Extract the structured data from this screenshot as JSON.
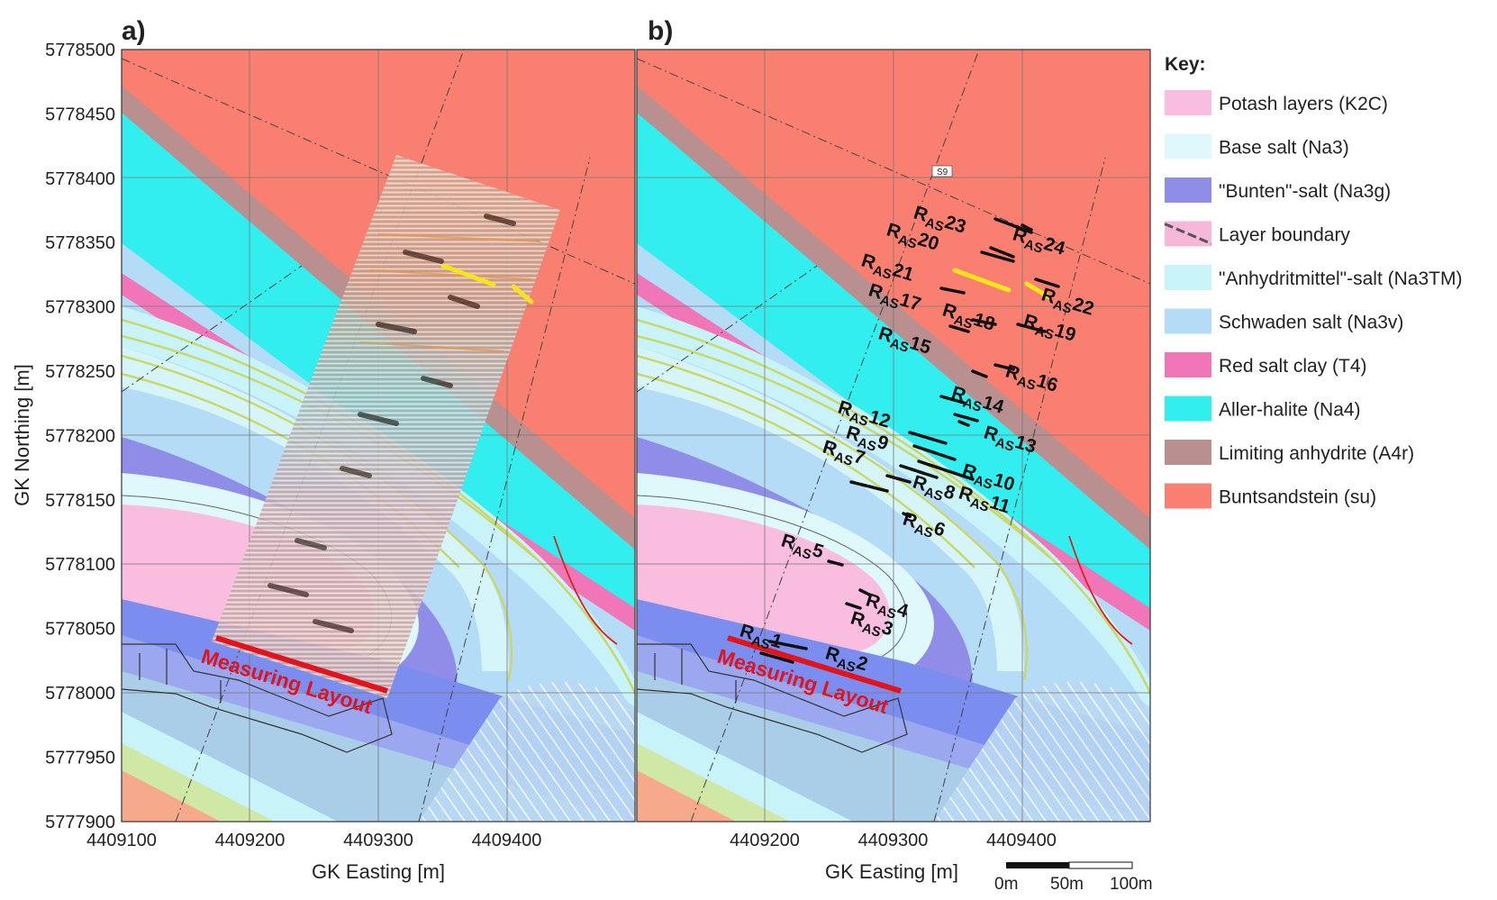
{
  "panels": [
    {
      "id": "a",
      "label": "a)"
    },
    {
      "id": "b",
      "label": "b)"
    }
  ],
  "axes": {
    "ylabel": "GK Northing [m]",
    "xlabel": "GK Easting [m]",
    "yticks": [
      "5778500",
      "5778450",
      "5778400",
      "5778350",
      "5778300",
      "5778250",
      "5778200",
      "5778150",
      "5778100",
      "5778050",
      "5778000",
      "5777950",
      "5777900"
    ],
    "xticks_a": [
      "4409100",
      "4409200",
      "4409300",
      "4409400"
    ],
    "xticks_b": [
      "4409200",
      "4409300",
      "4409400"
    ]
  },
  "key": {
    "title": "Key:",
    "items": [
      {
        "label": "Potash layers (K2C)",
        "color": "#f9bde0"
      },
      {
        "label": "Base salt (Na3)",
        "color": "#dff8fb"
      },
      {
        "label": "\"Bunten\"-salt (Na3g)",
        "color": "#8f8de8"
      },
      {
        "label": "Layer boundary",
        "color": "#f6b7d8"
      },
      {
        "label": "\"Anhydritmittel\"-salt (Na3TM)",
        "color": "#c8f3f8"
      },
      {
        "label": "Schwaden salt (Na3v)",
        "color": "#b5dcf6"
      },
      {
        "label": "Red salt clay (T4)",
        "color": "#f176b8"
      },
      {
        "label": "Aller-halite (Na4)",
        "color": "#33eeee"
      },
      {
        "label": "Limiting anhydrite (A4r)",
        "color": "#b98f8f"
      },
      {
        "label": "Buntsandstein (su)",
        "color": "#f98070"
      }
    ]
  },
  "map_text": {
    "measuring_layout": "Measuring Layout",
    "profile_tag": "S9"
  },
  "reflectors": {
    "prefix": "R",
    "subscript": "AS",
    "items": [
      {
        "n": "1",
        "highlight": false
      },
      {
        "n": "2",
        "highlight": false
      },
      {
        "n": "3",
        "highlight": false
      },
      {
        "n": "4",
        "highlight": false
      },
      {
        "n": "5",
        "highlight": false
      },
      {
        "n": "6",
        "highlight": false
      },
      {
        "n": "7",
        "highlight": false
      },
      {
        "n": "8",
        "highlight": false
      },
      {
        "n": "9",
        "highlight": false
      },
      {
        "n": "10",
        "highlight": false
      },
      {
        "n": "11",
        "highlight": false
      },
      {
        "n": "12",
        "highlight": false
      },
      {
        "n": "13",
        "highlight": false
      },
      {
        "n": "14",
        "highlight": false
      },
      {
        "n": "15",
        "highlight": false
      },
      {
        "n": "16",
        "highlight": false
      },
      {
        "n": "17",
        "highlight": false
      },
      {
        "n": "18",
        "highlight": false
      },
      {
        "n": "19",
        "highlight": false
      },
      {
        "n": "20",
        "highlight": true
      },
      {
        "n": "21",
        "highlight": false
      },
      {
        "n": "22",
        "highlight": false
      },
      {
        "n": "23",
        "highlight": false
      },
      {
        "n": "24",
        "highlight": false
      }
    ]
  },
  "scale_bar": {
    "labels": [
      "0m",
      "50m",
      "100m"
    ]
  }
}
